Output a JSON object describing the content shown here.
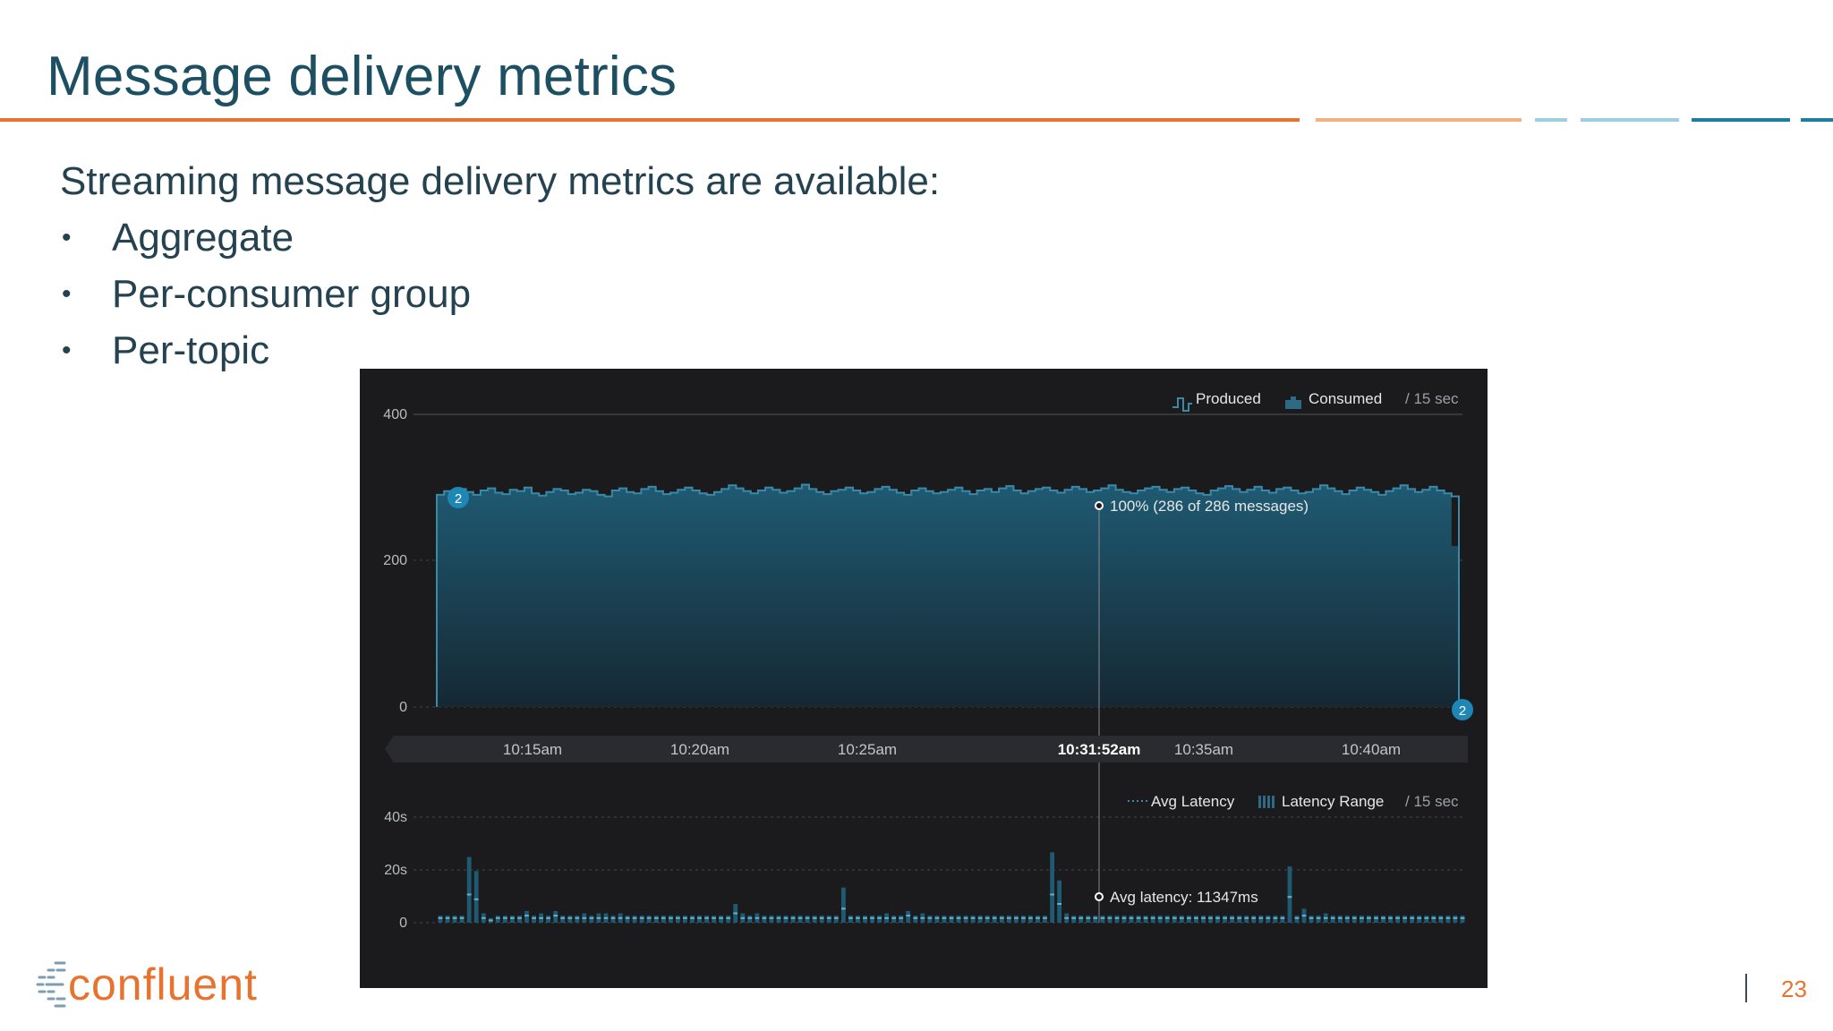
{
  "slide": {
    "title": "Message delivery metrics",
    "intro": "Streaming message delivery metrics are available:",
    "bullets": [
      "Aggregate",
      "Per-consumer group",
      "Per-topic"
    ],
    "bullet_symbol": "•",
    "page_number": "23",
    "logo_text": "confluent",
    "colors": {
      "title": "#1d4f62",
      "accent_orange": "#e8732e",
      "accent_light_orange": "#f4b07f",
      "accent_light_blue": "#9ccfe0",
      "accent_blue": "#1c7ea0",
      "panel_bg": "#1b1b1e"
    }
  },
  "dashboard": {
    "throughput": {
      "legend": {
        "produced": "Produced",
        "consumed": "Consumed",
        "interval": "/ 15 sec"
      },
      "y_ticks": [
        "400",
        "200",
        "0"
      ],
      "start_badge": "2",
      "end_badge": "2",
      "tooltip": "100% (286 of 286 messages)",
      "x_ticks": [
        "10:15am",
        "10:20am",
        "10:25am",
        "10:31:52am",
        "10:35am",
        "10:40am"
      ]
    },
    "latency": {
      "legend": {
        "avg": "Avg Latency",
        "range": "Latency Range",
        "interval": "/ 15 sec"
      },
      "y_ticks": [
        "40s",
        "20s",
        "0"
      ],
      "tooltip": "Avg latency: 11347ms"
    }
  },
  "chart_data": [
    {
      "type": "area",
      "title": "",
      "series": [
        {
          "name": "Produced",
          "values": [
            290,
            295,
            292,
            298,
            294,
            290,
            296,
            299,
            293,
            291,
            297,
            295,
            300,
            292,
            289,
            294,
            298,
            296,
            291,
            293,
            297,
            295,
            290,
            288,
            296,
            299,
            294,
            292,
            298,
            301,
            295,
            291,
            293,
            297,
            300,
            296,
            292,
            290,
            294,
            298,
            303,
            299,
            295,
            292,
            296,
            300,
            297,
            293,
            295,
            299,
            304,
            298,
            294,
            291,
            295,
            297,
            300,
            296,
            292,
            294,
            298,
            301,
            297,
            293,
            290,
            296,
            299,
            295,
            292,
            294,
            297,
            300,
            295,
            291,
            296,
            298,
            294,
            299,
            302,
            296,
            292,
            295,
            298,
            300,
            296,
            293,
            297,
            301,
            298,
            294,
            296,
            299,
            303,
            297,
            294,
            292,
            296,
            299,
            301,
            297,
            294,
            298,
            300,
            296,
            292,
            290,
            296,
            299,
            302,
            298,
            294,
            297,
            301,
            296,
            293,
            298,
            300,
            296,
            292,
            294,
            298,
            303,
            299,
            295,
            291,
            296,
            300,
            297,
            294,
            290,
            295,
            299,
            303,
            298,
            294,
            297,
            301,
            296,
            292,
            288
          ]
        },
        {
          "name": "Consumed",
          "values": [
            290,
            295,
            292,
            298,
            294,
            290,
            296,
            299,
            293,
            291,
            297,
            295,
            300,
            292,
            289,
            294,
            298,
            296,
            291,
            293,
            297,
            295,
            290,
            288,
            296,
            299,
            294,
            292,
            298,
            301,
            295,
            291,
            293,
            297,
            300,
            296,
            292,
            290,
            294,
            298,
            303,
            299,
            295,
            292,
            296,
            300,
            297,
            293,
            295,
            299,
            304,
            298,
            294,
            291,
            295,
            297,
            300,
            296,
            292,
            294,
            298,
            301,
            297,
            293,
            290,
            296,
            299,
            295,
            292,
            294,
            297,
            300,
            295,
            291,
            296,
            298,
            294,
            299,
            302,
            296,
            292,
            295,
            298,
            300,
            296,
            293,
            297,
            301,
            298,
            294,
            296,
            299,
            303,
            297,
            294,
            292,
            296,
            299,
            301,
            297,
            294,
            298,
            300,
            296,
            292,
            290,
            296,
            299,
            302,
            298,
            294,
            297,
            301,
            296,
            293,
            298,
            300,
            296,
            292,
            294,
            298,
            303,
            299,
            295,
            291,
            296,
            300,
            297,
            294,
            290,
            295,
            299,
            303,
            298,
            294,
            297,
            301,
            296,
            292,
            220
          ]
        }
      ],
      "ylim": [
        0,
        400
      ],
      "ylabel": "",
      "xlabel": ""
    },
    {
      "type": "bar",
      "title": "",
      "series": [
        {
          "name": "Latency Range",
          "values": [
            3,
            3,
            3,
            3,
            28,
            22,
            4,
            2,
            3,
            3,
            3,
            3,
            5,
            3,
            4,
            3,
            5,
            3,
            3,
            3,
            4,
            3,
            4,
            4,
            3,
            4,
            3,
            3,
            3,
            3,
            3,
            3,
            3,
            3,
            3,
            3,
            3,
            3,
            3,
            3,
            3,
            8,
            4,
            3,
            4,
            3,
            3,
            3,
            3,
            3,
            3,
            3,
            3,
            3,
            3,
            3,
            15,
            3,
            3,
            3,
            3,
            3,
            4,
            3,
            3,
            5,
            3,
            4,
            3,
            3,
            3,
            3,
            3,
            3,
            3,
            3,
            3,
            3,
            3,
            3,
            3,
            3,
            3,
            3,
            3,
            30,
            18,
            4,
            3,
            3,
            3,
            3,
            3,
            3,
            3,
            3,
            3,
            3,
            3,
            3,
            3,
            3,
            3,
            3,
            3,
            3,
            3,
            3,
            3,
            3,
            3,
            3,
            3,
            3,
            3,
            3,
            3,
            3,
            24,
            3,
            6,
            3,
            3,
            4,
            3,
            3,
            3,
            3,
            3,
            3,
            3,
            3,
            3,
            3,
            3,
            3,
            3,
            3,
            3,
            3,
            3,
            3,
            3
          ]
        },
        {
          "name": "Avg Latency",
          "values": [
            2,
            2,
            2,
            2,
            12,
            10,
            2,
            1,
            2,
            2,
            2,
            2,
            3,
            2,
            2,
            2,
            3,
            2,
            2,
            2,
            2,
            2,
            2,
            2,
            2,
            2,
            2,
            2,
            2,
            2,
            2,
            2,
            2,
            2,
            2,
            2,
            2,
            2,
            2,
            2,
            2,
            4,
            2,
            2,
            2,
            2,
            2,
            2,
            2,
            2,
            2,
            2,
            2,
            2,
            2,
            2,
            6,
            2,
            2,
            2,
            2,
            2,
            2,
            2,
            2,
            3,
            2,
            2,
            2,
            2,
            2,
            2,
            2,
            2,
            2,
            2,
            2,
            2,
            2,
            2,
            2,
            2,
            2,
            2,
            2,
            12,
            8,
            2,
            2,
            2,
            2,
            2,
            2,
            2,
            2,
            2,
            2,
            2,
            2,
            2,
            2,
            2,
            2,
            2,
            2,
            2,
            2,
            2,
            2,
            2,
            2,
            2,
            2,
            2,
            2,
            2,
            2,
            2,
            11,
            2,
            3,
            2,
            2,
            2,
            2,
            2,
            2,
            2,
            2,
            2,
            2,
            2,
            2,
            2,
            2,
            2,
            2,
            2,
            2,
            2,
            2,
            2,
            2
          ]
        }
      ],
      "ylim": [
        0,
        45
      ],
      "ylabel": "",
      "xlabel": ""
    }
  ]
}
